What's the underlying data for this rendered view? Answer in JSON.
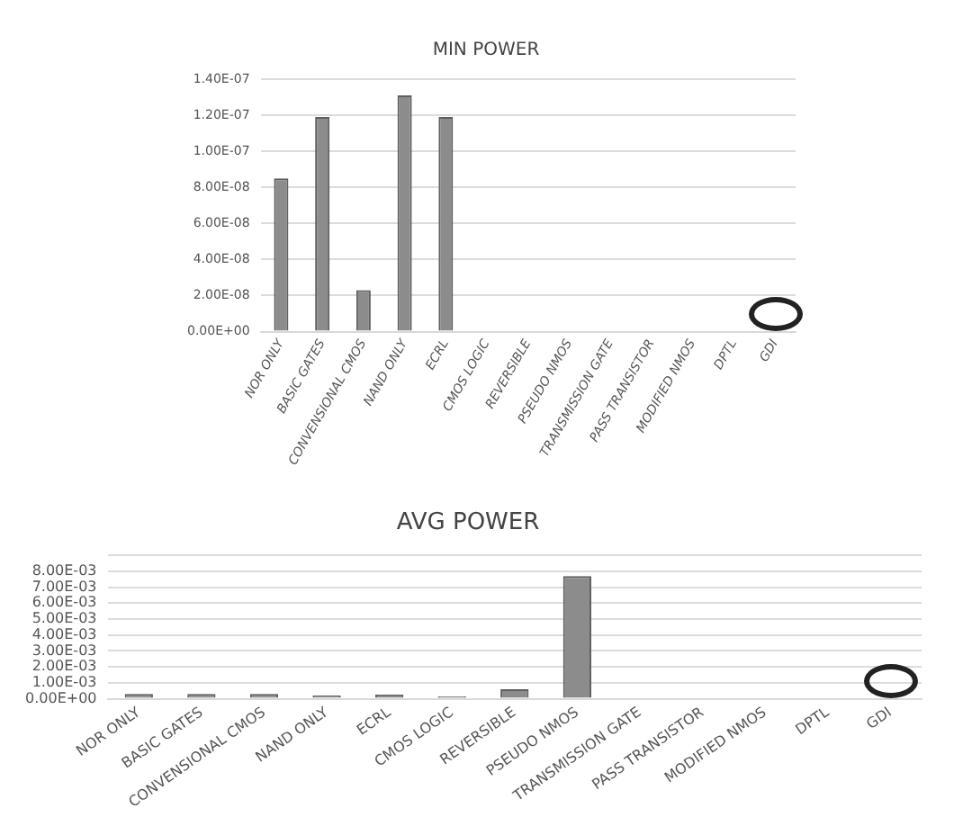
{
  "chart_data": [
    {
      "type": "bar",
      "title": "MIN POWER",
      "categories": [
        "NOR ONLY",
        "BASIC GATES",
        "CONVENSIONAL CMOS",
        "NAND ONLY",
        "ECRL",
        "CMOS LOGIC",
        "REVERSIBLE",
        "PSEUDO NMOS",
        "TRANSMISSION GATE",
        "PASS TRANSISTOR",
        "MODIFIED NMOS",
        "DPTL",
        "GDI"
      ],
      "values": [
        8.5e-08,
        1.19e-07,
        2.3e-08,
        1.31e-07,
        1.19e-07,
        0,
        0,
        0,
        0,
        0,
        0,
        0,
        0
      ],
      "color": "#8c8c8c",
      "ylim": [
        0,
        1.4e-07
      ],
      "yticks": [
        {
          "value": 0,
          "label": "0.00E+00"
        },
        {
          "value": 2e-08,
          "label": "2.00E-08"
        },
        {
          "value": 4e-08,
          "label": "4.00E-08"
        },
        {
          "value": 6e-08,
          "label": "6.00E-08"
        },
        {
          "value": 8e-08,
          "label": "8.00E-08"
        },
        {
          "value": 1e-07,
          "label": "1.00E-07"
        },
        {
          "value": 1.2e-07,
          "label": "1.20E-07"
        },
        {
          "value": 1.4e-07,
          "label": "1.40E-07"
        }
      ],
      "grid": "y",
      "legend": false
    },
    {
      "type": "bar",
      "title": "AVG POWER",
      "categories": [
        "NOR ONLY",
        "BASIC GATES",
        "CONVENSIONAL CMOS",
        "NAND ONLY",
        "ECRL",
        "CMOS LOGIC",
        "REVERSIBLE",
        "PSEUDO NMOS",
        "TRANSMISSION GATE",
        "PASS TRANSISTOR",
        "MODIFIED NMOS",
        "DPTL",
        "GDI"
      ],
      "values": [
        0.0003,
        0.0003,
        0.0003,
        0.0002,
        0.00025,
        0.00015,
        0.0006,
        0.0077,
        0,
        0,
        0,
        0,
        0
      ],
      "color": "#8c8c8c",
      "ylim": [
        0,
        0.009
      ],
      "yticks": [
        {
          "value": 0,
          "label": "0.00E+00"
        },
        {
          "value": 0.001,
          "label": "1.00E-03"
        },
        {
          "value": 0.002,
          "label": "2.00E-03"
        },
        {
          "value": 0.003,
          "label": "3.00E-03"
        },
        {
          "value": 0.004,
          "label": "4.00E-03"
        },
        {
          "value": 0.005,
          "label": "5.00E-03"
        },
        {
          "value": 0.006,
          "label": "6.00E-03"
        },
        {
          "value": 0.007,
          "label": "7.00E-03"
        },
        {
          "value": 0.008,
          "label": "8.00E-03"
        },
        {
          "value": 0.009,
          "label": null
        }
      ],
      "grid": "y",
      "legend": false
    }
  ]
}
